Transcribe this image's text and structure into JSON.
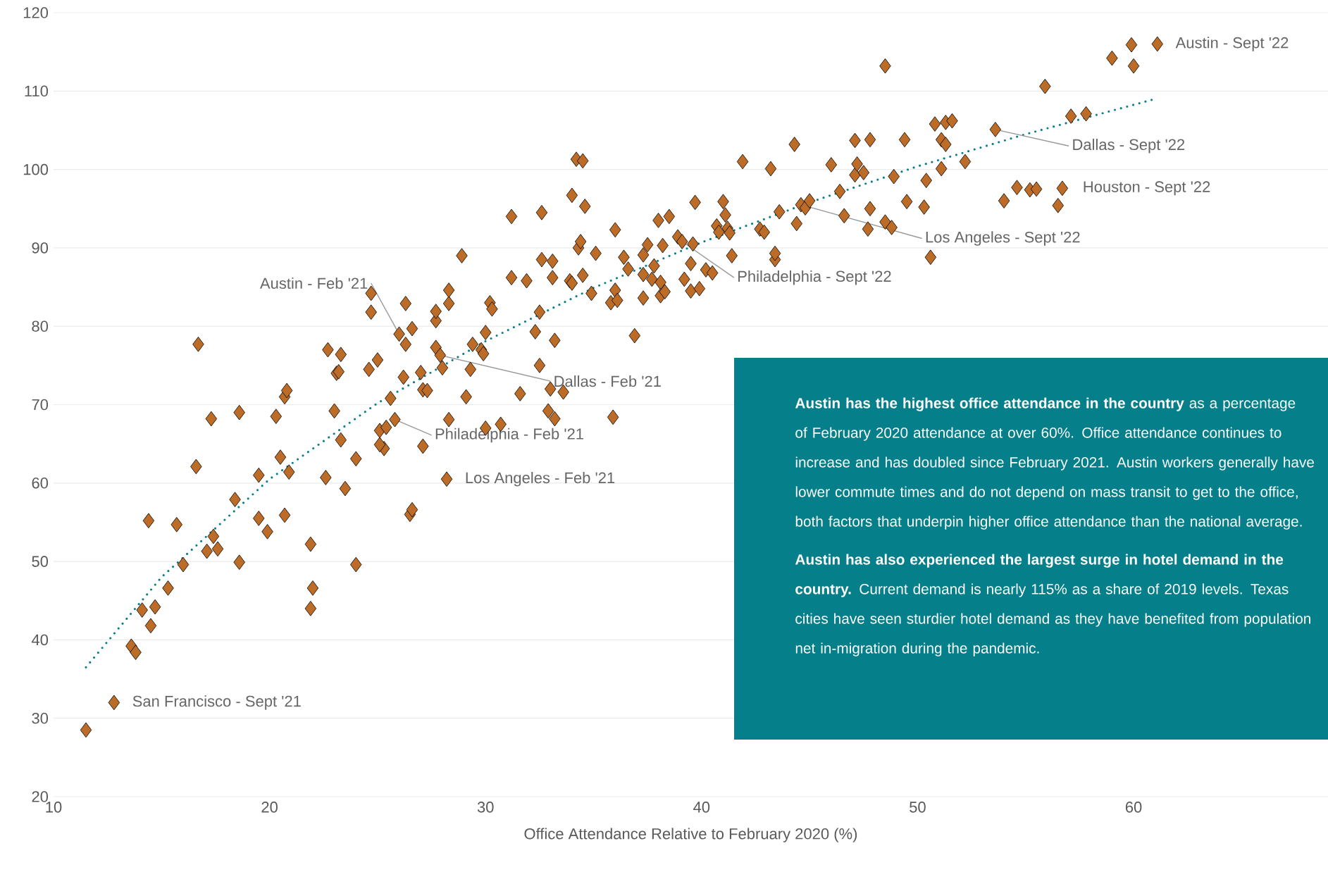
{
  "chart_data": {
    "type": "scatter",
    "xlabel": "Office Attendance Relative to February 2020 (%)",
    "xlim": [
      10,
      69
    ],
    "ylim": [
      20,
      120
    ],
    "xticks": [
      10,
      20,
      30,
      40,
      50,
      60
    ],
    "yticks": [
      20,
      30,
      40,
      50,
      60,
      70,
      80,
      90,
      100,
      110,
      120
    ],
    "grid": "y",
    "marker": "diamond",
    "series": [
      {
        "color": "#bd6c27",
        "x": [
          11.5,
          12.8,
          13.6,
          13.8,
          14.1,
          14.5,
          14.7,
          14.4,
          15.3,
          15.7,
          16.0,
          16.7,
          16.6,
          17.1,
          17.4,
          17.6,
          17.3,
          18.6,
          18.4,
          18.6,
          19.5,
          19.5,
          19.9,
          20.3,
          20.5,
          20.7,
          20.8,
          20.7,
          20.9,
          21.9,
          21.9,
          22.0,
          22.6,
          22.7,
          23.0,
          23.1,
          23.3,
          23.2,
          23.3,
          23.5,
          24.0,
          24.0,
          24.6,
          24.7,
          24.7,
          25.0,
          25.1,
          25.3,
          25.1,
          25.4,
          25.6,
          25.8,
          26.0,
          26.2,
          26.3,
          26.3,
          26.6,
          26.5,
          26.6,
          27.0,
          27.1,
          27.3,
          27.1,
          27.7,
          27.7,
          27.7,
          27.9,
          28.0,
          28.2,
          28.3,
          28.3,
          28.3,
          28.9,
          29.1,
          29.3,
          29.4,
          29.8,
          29.9,
          30.0,
          30.0,
          30.2,
          30.3,
          30.7,
          31.2,
          31.2,
          31.6,
          31.9,
          32.3,
          32.5,
          32.5,
          32.6,
          32.6,
          32.9,
          33.0,
          33.1,
          33.1,
          33.2,
          33.2,
          33.6,
          33.9,
          34.0,
          34.0,
          34.2,
          34.3,
          34.4,
          34.5,
          34.5,
          34.6,
          34.9,
          35.1,
          35.8,
          36.0,
          36.0,
          35.9,
          36.1,
          36.4,
          36.6,
          36.9,
          37.3,
          37.3,
          37.3,
          37.5,
          37.8,
          37.7,
          38.0,
          38.1,
          38.1,
          38.2,
          38.3,
          38.5,
          38.9,
          39.1,
          39.2,
          39.5,
          39.5,
          39.6,
          39.7,
          39.9,
          40.2,
          40.5,
          40.7,
          40.8,
          41.0,
          41.1,
          41.2,
          41.3,
          41.4,
          41.9,
          42.7,
          42.9,
          43.2,
          43.4,
          43.4,
          43.6,
          44.3,
          44.4,
          44.6,
          44.8,
          45.0,
          46.0,
          46.4,
          46.6,
          47.1,
          47.1,
          47.2,
          47.5,
          47.7,
          47.8,
          47.8,
          48.5,
          48.5,
          48.8,
          48.9,
          49.4,
          49.5,
          50.3,
          50.4,
          50.6,
          50.8,
          51.1,
          51.1,
          51.3,
          51.3,
          51.6,
          52.2,
          53.6,
          54.0,
          54.6,
          55.2,
          55.5,
          55.9,
          56.5,
          56.7,
          57.1,
          57.8,
          59.0,
          59.9,
          60.0,
          61.1
        ],
        "values": [
          28.5,
          32.0,
          39.2,
          38.4,
          43.8,
          41.8,
          44.2,
          55.2,
          46.6,
          54.7,
          49.6,
          77.7,
          62.1,
          51.3,
          53.2,
          51.6,
          68.2,
          69.0,
          57.9,
          49.9,
          61.0,
          55.5,
          53.8,
          68.5,
          63.3,
          71.0,
          71.8,
          55.9,
          61.4,
          52.2,
          44.0,
          46.6,
          60.7,
          77.0,
          69.2,
          74.0,
          65.5,
          74.2,
          76.4,
          59.3,
          63.1,
          49.6,
          74.5,
          84.2,
          81.8,
          75.7,
          66.7,
          64.4,
          64.9,
          67.1,
          70.8,
          68.1,
          79.0,
          73.5,
          82.9,
          77.7,
          79.7,
          56.0,
          56.6,
          74.1,
          71.9,
          71.8,
          64.7,
          77.3,
          80.7,
          81.9,
          76.3,
          74.7,
          60.5,
          82.9,
          84.6,
          68.1,
          89.0,
          71.0,
          74.5,
          77.7,
          77.0,
          76.5,
          79.2,
          67.0,
          83.0,
          82.2,
          67.5,
          94.0,
          86.2,
          71.4,
          85.8,
          79.3,
          75.0,
          81.8,
          94.5,
          88.5,
          69.2,
          72.0,
          88.3,
          86.2,
          68.2,
          78.2,
          71.6,
          85.8,
          96.7,
          85.5,
          101.3,
          90.0,
          90.8,
          101.1,
          86.5,
          95.3,
          84.2,
          89.3,
          83.0,
          92.3,
          84.6,
          68.4,
          83.3,
          88.8,
          87.3,
          78.8,
          83.6,
          86.6,
          89.1,
          90.4,
          87.7,
          86.0,
          93.5,
          85.6,
          83.9,
          90.3,
          84.4,
          94.0,
          91.4,
          90.8,
          86.0,
          84.5,
          88.0,
          90.5,
          95.8,
          84.8,
          87.2,
          86.8,
          92.8,
          92.0,
          95.9,
          94.2,
          92.5,
          91.9,
          89.0,
          101.0,
          92.4,
          92.0,
          100.1,
          88.5,
          89.3,
          94.6,
          103.2,
          93.1,
          95.5,
          95.1,
          96.0,
          100.6,
          97.2,
          94.1,
          103.7,
          99.3,
          100.7,
          99.6,
          92.4,
          95.0,
          103.8,
          113.2,
          93.3,
          92.6,
          99.1,
          103.8,
          95.9,
          95.2,
          98.6,
          88.8,
          105.8,
          100.1,
          103.8,
          103.2,
          106.0,
          106.2,
          101.0,
          105.1,
          96.0,
          97.7,
          97.4,
          97.5,
          110.6,
          95.4,
          97.6,
          106.8,
          107.1,
          114.2,
          115.9,
          113.2,
          116.0
        ]
      },
      {
        "type": "line",
        "color": "#0a7f8a",
        "line_style": "dotted",
        "marker": "none",
        "x": [
          11.5,
          15,
          20,
          25,
          30,
          35,
          40,
          45,
          50,
          55,
          61
        ],
        "values": [
          36.5,
          48.0,
          60.5,
          70.2,
          78.1,
          84.9,
          90.7,
          95.8,
          100.4,
          104.5,
          109.0
        ]
      }
    ],
    "annotations": [
      {
        "text": "Austin - Sept '22",
        "x": 61.1,
        "y": 116.0
      },
      {
        "text": "Dallas - Sept '22",
        "x": 53.6,
        "y": 105.1
      },
      {
        "text": "Houston - Sept '22",
        "x": 56.7,
        "y": 97.6
      },
      {
        "text": "Los Angeles - Sept '22",
        "x": 44.6,
        "y": 95.5
      },
      {
        "text": "Philadelphia - Sept '22",
        "x": 39.1,
        "y": 90.8
      },
      {
        "text": "Austin - Feb '21",
        "x": 26.0,
        "y": 79.0
      },
      {
        "text": "Dallas - Feb '21",
        "x": 27.9,
        "y": 76.3
      },
      {
        "text": "Philadelphia - Feb '21",
        "x": 25.8,
        "y": 68.1
      },
      {
        "text": "Los Angeles - Feb '21",
        "x": 28.2,
        "y": 60.5
      },
      {
        "text": "San Francisco - Sept '21",
        "x": 12.8,
        "y": 32.0
      },
      "**Austin has the highest office attendance in the country** as a percentage of February 2020 attendance at over 60%. Office attendance continues to increase and has doubled since February 2021. Austin workers generally have lower commute times and do not depend on mass transit to get to the office, both factors that underpin higher office attendance than the national average.",
      "**Austin has also experienced the largest surge in hotel demand in the country.** Current demand is nearly 115% as a share of 2019 levels. Texas cities have seen sturdier hotel demand as they have benefited from population net in-migration during the pandemic."
    ]
  }
}
